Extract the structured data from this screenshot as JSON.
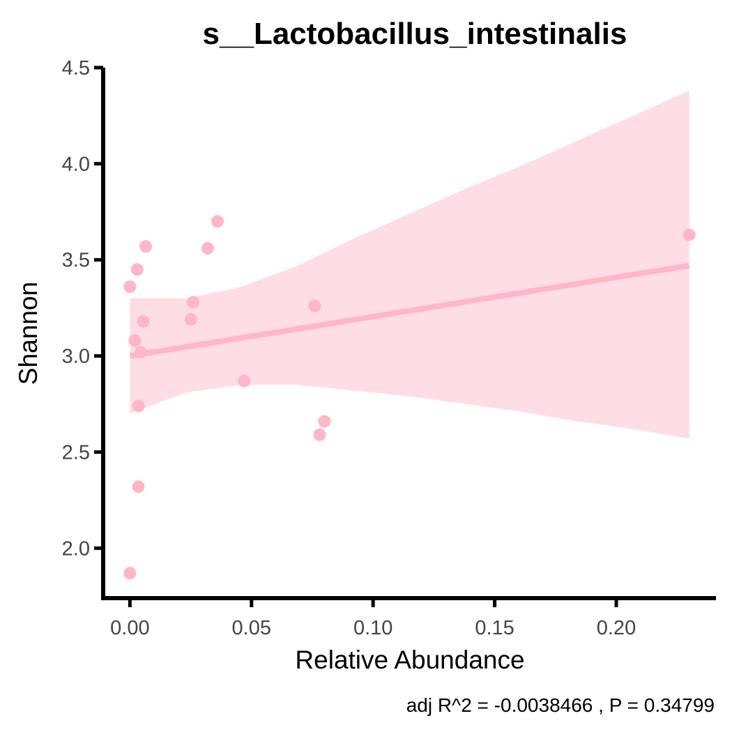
{
  "chart_data": {
    "type": "scatter",
    "title": "s__Lactobacillus_intestinalis",
    "xlabel": "Relative Abundance",
    "ylabel": "Shannon",
    "caption": "adj R^2 =  -0.0038466 , P = 0.34799",
    "xlim": [
      -0.011,
      0.241
    ],
    "ylim": [
      1.74,
      4.5
    ],
    "x_ticks": [
      0.0,
      0.05,
      0.1,
      0.15,
      0.2
    ],
    "x_tick_labels": [
      "0.00",
      "0.05",
      "0.10",
      "0.15",
      "0.20"
    ],
    "y_ticks": [
      2.0,
      2.5,
      3.0,
      3.5,
      4.0,
      4.5
    ],
    "y_tick_labels": [
      "2.0",
      "2.5",
      "3.0",
      "3.5",
      "4.0",
      "4.5"
    ],
    "grid": false,
    "points": [
      {
        "x": 0.0,
        "y": 1.87
      },
      {
        "x": 0.0,
        "y": 3.36
      },
      {
        "x": 0.002,
        "y": 3.08
      },
      {
        "x": 0.003,
        "y": 3.45
      },
      {
        "x": 0.0035,
        "y": 2.74
      },
      {
        "x": 0.0035,
        "y": 2.32
      },
      {
        "x": 0.0045,
        "y": 3.02
      },
      {
        "x": 0.0055,
        "y": 3.18
      },
      {
        "x": 0.0065,
        "y": 3.57
      },
      {
        "x": 0.025,
        "y": 3.19
      },
      {
        "x": 0.026,
        "y": 3.28
      },
      {
        "x": 0.032,
        "y": 3.56
      },
      {
        "x": 0.036,
        "y": 3.7
      },
      {
        "x": 0.047,
        "y": 2.87
      },
      {
        "x": 0.076,
        "y": 3.26
      },
      {
        "x": 0.078,
        "y": 2.59
      },
      {
        "x": 0.08,
        "y": 2.66
      },
      {
        "x": 0.23,
        "y": 3.63
      }
    ],
    "fit_line": {
      "x": [
        0.0,
        0.23
      ],
      "y": [
        3.0,
        3.47
      ]
    },
    "confidence_band": {
      "x": [
        0.0,
        0.023,
        0.046,
        0.069,
        0.092,
        0.115,
        0.138,
        0.161,
        0.184,
        0.207,
        0.23
      ],
      "upper": [
        3.3,
        3.3,
        3.36,
        3.47,
        3.61,
        3.74,
        3.87,
        3.99,
        4.12,
        4.25,
        4.38
      ],
      "lower": [
        2.7,
        2.81,
        2.85,
        2.85,
        2.82,
        2.79,
        2.75,
        2.71,
        2.66,
        2.62,
        2.57
      ]
    },
    "colors": {
      "point": "#ffb6c6",
      "line": "#ffb6c6",
      "band": "#ffdde4",
      "axis": "#000000",
      "tick_label": "#444444"
    }
  }
}
